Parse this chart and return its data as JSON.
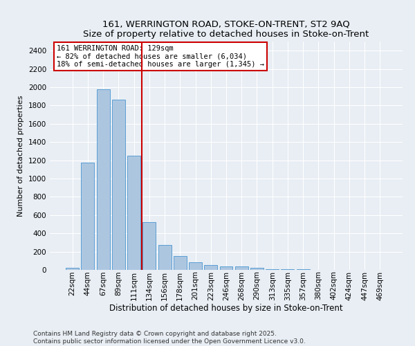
{
  "title1": "161, WERRINGTON ROAD, STOKE-ON-TRENT, ST2 9AQ",
  "title2": "Size of property relative to detached houses in Stoke-on-Trent",
  "xlabel": "Distribution of detached houses by size in Stoke-on-Trent",
  "ylabel": "Number of detached properties",
  "categories": [
    "22sqm",
    "44sqm",
    "67sqm",
    "89sqm",
    "111sqm",
    "134sqm",
    "156sqm",
    "178sqm",
    "201sqm",
    "223sqm",
    "246sqm",
    "268sqm",
    "290sqm",
    "313sqm",
    "335sqm",
    "357sqm",
    "380sqm",
    "402sqm",
    "424sqm",
    "447sqm",
    "469sqm"
  ],
  "values": [
    25,
    1175,
    1975,
    1860,
    1250,
    525,
    275,
    150,
    85,
    50,
    40,
    40,
    20,
    10,
    5,
    5,
    2,
    2,
    1,
    1,
    0
  ],
  "bar_color": "#adc6e0",
  "bar_edge_color": "#5a9fd4",
  "vline_x_idx": 4.5,
  "vline_color": "#cc0000",
  "annotation_text": "161 WERRINGTON ROAD: 129sqm\n← 82% of detached houses are smaller (6,034)\n18% of semi-detached houses are larger (1,345) →",
  "annotation_box_edge": "#cc0000",
  "ylim": [
    0,
    2500
  ],
  "yticks": [
    0,
    200,
    400,
    600,
    800,
    1000,
    1200,
    1400,
    1600,
    1800,
    2000,
    2200,
    2400
  ],
  "footnote1": "Contains HM Land Registry data © Crown copyright and database right 2025.",
  "footnote2": "Contains public sector information licensed under the Open Government Licence v3.0.",
  "bg_color": "#e8eef4",
  "grid_color": "#ffffff",
  "title_fontsize": 9.5,
  "xlabel_fontsize": 8.5,
  "ylabel_fontsize": 8,
  "tick_fontsize": 7.5,
  "annot_fontsize": 7.5
}
